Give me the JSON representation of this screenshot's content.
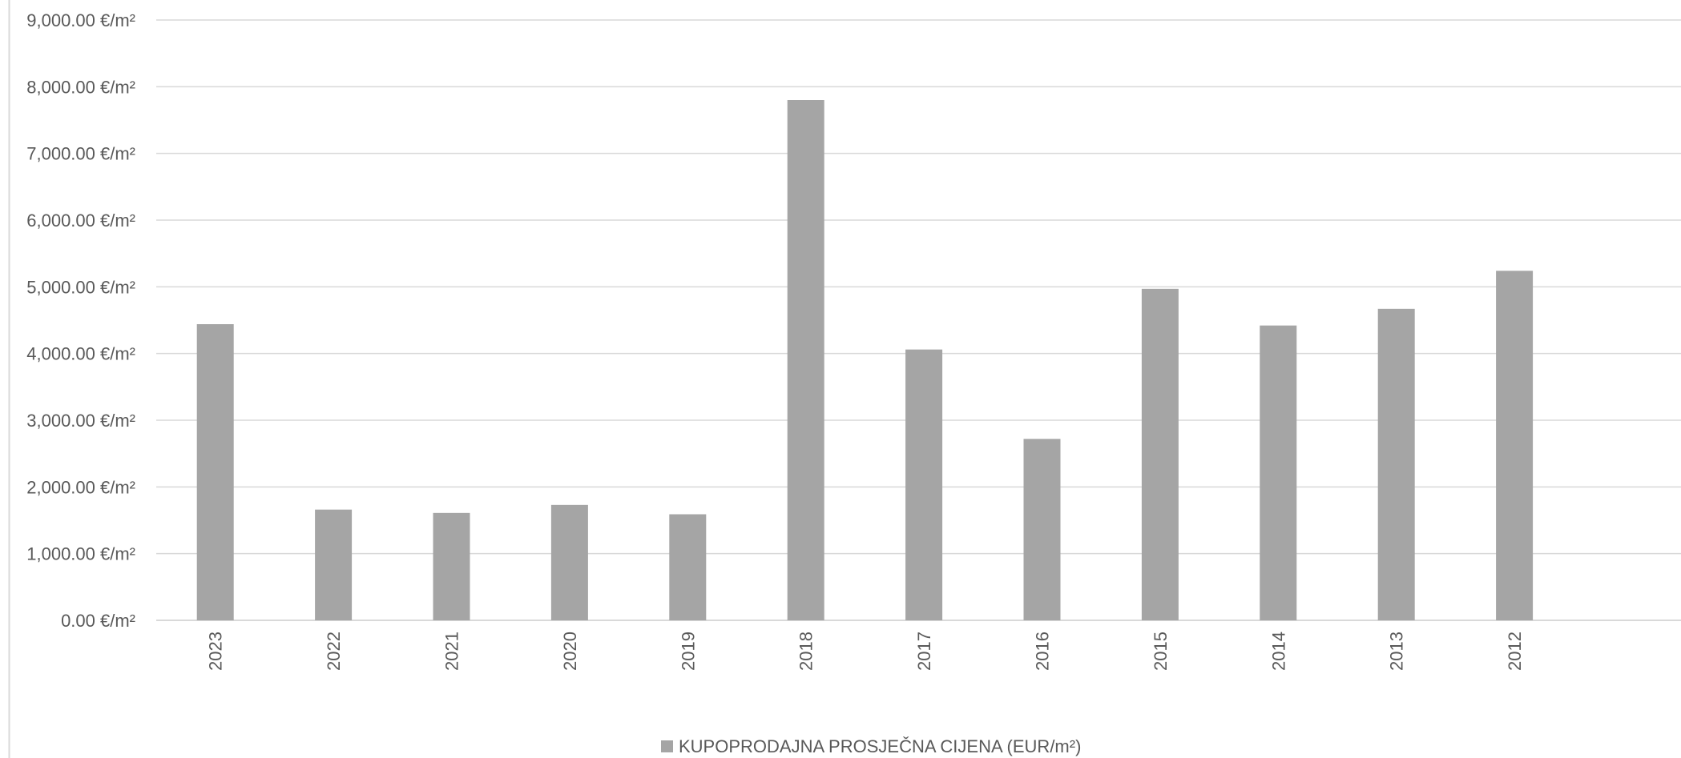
{
  "chart_data": {
    "type": "bar",
    "title": "",
    "xlabel": "",
    "ylabel": "",
    "categories": [
      "2023",
      "2022",
      "2021",
      "2020",
      "2019",
      "2018",
      "2017",
      "2016",
      "2015",
      "2014",
      "2013",
      "2012"
    ],
    "series": [
      {
        "name": "KUPOPRODAJNA PROSJEČNA CIJENA (EUR/m²)",
        "values": [
          4440,
          1660,
          1610,
          1730,
          1590,
          7800,
          4060,
          2720,
          4970,
          4420,
          4670,
          5240
        ],
        "color": "#a5a5a5"
      }
    ],
    "ylim": [
      0,
      9000
    ],
    "y_ticks": [
      0,
      1000,
      2000,
      3000,
      4000,
      5000,
      6000,
      7000,
      8000,
      9000
    ],
    "y_tick_labels": [
      "0.00 €/m²",
      "1,000.00 €/m²",
      "2,000.00 €/m²",
      "3,000.00 €/m²",
      "4,000.00 €/m²",
      "5,000.00 €/m²",
      "6,000.00 €/m²",
      "7,000.00 €/m²",
      "8,000.00 €/m²",
      "9,000.00 €/m²"
    ],
    "grid": true,
    "legend_position": "bottom-center",
    "colors": {
      "bar": "#a5a5a5",
      "gridline": "#d9d9d9",
      "axis_line": "#d9d9d9",
      "text": "#595959"
    }
  }
}
